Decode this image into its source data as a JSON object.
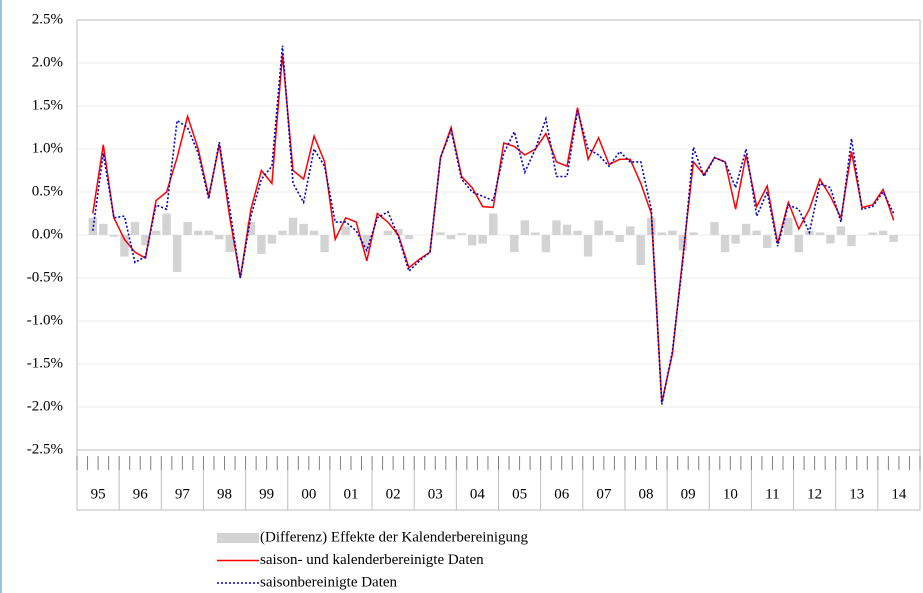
{
  "chart_data": {
    "type": "bar-line",
    "categories": [
      "95",
      null,
      null,
      null,
      "96",
      null,
      null,
      null,
      "97",
      null,
      null,
      null,
      "98",
      null,
      null,
      null,
      "99",
      null,
      null,
      null,
      "00",
      null,
      null,
      null,
      "01",
      null,
      null,
      null,
      "02",
      null,
      null,
      null,
      "03",
      null,
      null,
      null,
      "04",
      null,
      null,
      null,
      "05",
      null,
      null,
      null,
      "06",
      null,
      null,
      null,
      "07",
      null,
      null,
      null,
      "08",
      null,
      null,
      null,
      "09",
      null,
      null,
      null,
      "10",
      null,
      null,
      null,
      "11",
      null,
      null,
      null,
      "12",
      null,
      null,
      null,
      "13",
      null,
      null,
      null,
      "14",
      null,
      null,
      null
    ],
    "series": [
      {
        "name": "(Differenz) Effekte der Kalenderbereinigung",
        "kind": "bar",
        "color": "#d3d3d3",
        "values": [
          null,
          0.2,
          0.13,
          -0.02,
          -0.25,
          0.15,
          -0.12,
          0.05,
          0.25,
          -0.43,
          0.15,
          0.05,
          0.05,
          -0.05,
          -0.2,
          0.0,
          0.15,
          -0.22,
          -0.1,
          0.05,
          0.2,
          0.13,
          0.05,
          -0.2,
          0.0,
          0.1,
          0.0,
          -0.15,
          0.0,
          0.05,
          0.07,
          -0.05,
          0.0,
          0.0,
          0.03,
          -0.05,
          0.02,
          -0.12,
          -0.1,
          0.25,
          0.0,
          -0.2,
          0.17,
          0.03,
          -0.2,
          0.17,
          0.12,
          0.05,
          -0.25,
          0.17,
          0.05,
          -0.08,
          0.1,
          -0.35,
          0.2,
          0.03,
          0.05,
          -0.18,
          0.03,
          0.0,
          0.15,
          -0.2,
          -0.1,
          0.13,
          0.05,
          -0.15,
          0.0,
          0.2,
          -0.2,
          0.05,
          0.03,
          -0.1,
          0.1,
          -0.13,
          0.0,
          0.03,
          0.05,
          -0.08,
          null,
          null
        ]
      },
      {
        "name": "saison- und kalenderbereinigte Daten",
        "kind": "line",
        "color": "#ff0000",
        "dash": "solid",
        "values": [
          null,
          0.25,
          1.05,
          0.2,
          -0.05,
          -0.2,
          -0.27,
          0.4,
          0.5,
          0.9,
          1.38,
          1.0,
          0.45,
          1.05,
          0.2,
          -0.5,
          0.3,
          0.75,
          0.6,
          2.1,
          0.75,
          0.65,
          1.15,
          0.85,
          -0.05,
          0.2,
          0.15,
          -0.3,
          0.25,
          0.15,
          0.0,
          -0.38,
          -0.28,
          -0.2,
          0.9,
          1.25,
          0.68,
          0.55,
          0.33,
          0.32,
          1.07,
          1.03,
          0.93,
          1.0,
          1.18,
          0.85,
          0.8,
          1.48,
          0.88,
          1.13,
          0.82,
          0.88,
          0.88,
          0.6,
          0.25,
          -1.95,
          -1.38,
          -0.25,
          0.85,
          0.7,
          0.9,
          0.85,
          0.3,
          0.93,
          0.33,
          0.57,
          -0.1,
          0.38,
          0.07,
          0.3,
          0.65,
          0.45,
          0.2,
          0.97,
          0.32,
          0.35,
          0.53,
          0.17,
          null,
          null
        ]
      },
      {
        "name": "saisonbereinigte Daten",
        "kind": "line",
        "color": "#0000cc",
        "dash": "dotted",
        "values": [
          null,
          0.05,
          0.95,
          0.2,
          0.22,
          -0.32,
          -0.25,
          0.35,
          0.3,
          1.33,
          1.25,
          0.95,
          0.42,
          1.08,
          0.3,
          -0.5,
          0.22,
          0.65,
          0.8,
          2.2,
          0.6,
          0.38,
          1.0,
          0.8,
          0.15,
          0.15,
          0.05,
          -0.18,
          0.2,
          0.27,
          -0.02,
          -0.42,
          -0.3,
          -0.2,
          0.9,
          1.22,
          0.65,
          0.5,
          0.45,
          0.4,
          0.95,
          1.2,
          0.73,
          1.0,
          1.35,
          0.68,
          0.68,
          1.45,
          1.0,
          0.93,
          0.8,
          0.97,
          0.85,
          0.85,
          0.3,
          -1.97,
          -1.35,
          -0.3,
          1.02,
          0.68,
          0.9,
          0.85,
          0.55,
          1.0,
          0.22,
          0.5,
          -0.13,
          0.35,
          0.3,
          0.03,
          0.6,
          0.55,
          0.15,
          1.12,
          0.3,
          0.33,
          0.5,
          0.25,
          null,
          null
        ]
      }
    ],
    "ylim": [
      -2.5,
      2.5
    ],
    "yticks": [
      {
        "value": -2.5,
        "label": "-2.5%"
      },
      {
        "value": -2.0,
        "label": "-2.0%"
      },
      {
        "value": -1.5,
        "label": "-1.5%"
      },
      {
        "value": -1.0,
        "label": "-1.0%"
      },
      {
        "value": -0.5,
        "label": "-0.5%"
      },
      {
        "value": 0.0,
        "label": "0.0%"
      },
      {
        "value": 0.5,
        "label": "0.5%"
      },
      {
        "value": 1.0,
        "label": "1.0%"
      },
      {
        "value": 1.5,
        "label": "1.5%"
      },
      {
        "value": 2.0,
        "label": "2.0%"
      },
      {
        "value": 2.5,
        "label": "2.5%"
      }
    ],
    "grid": true,
    "legend": "bottom"
  }
}
